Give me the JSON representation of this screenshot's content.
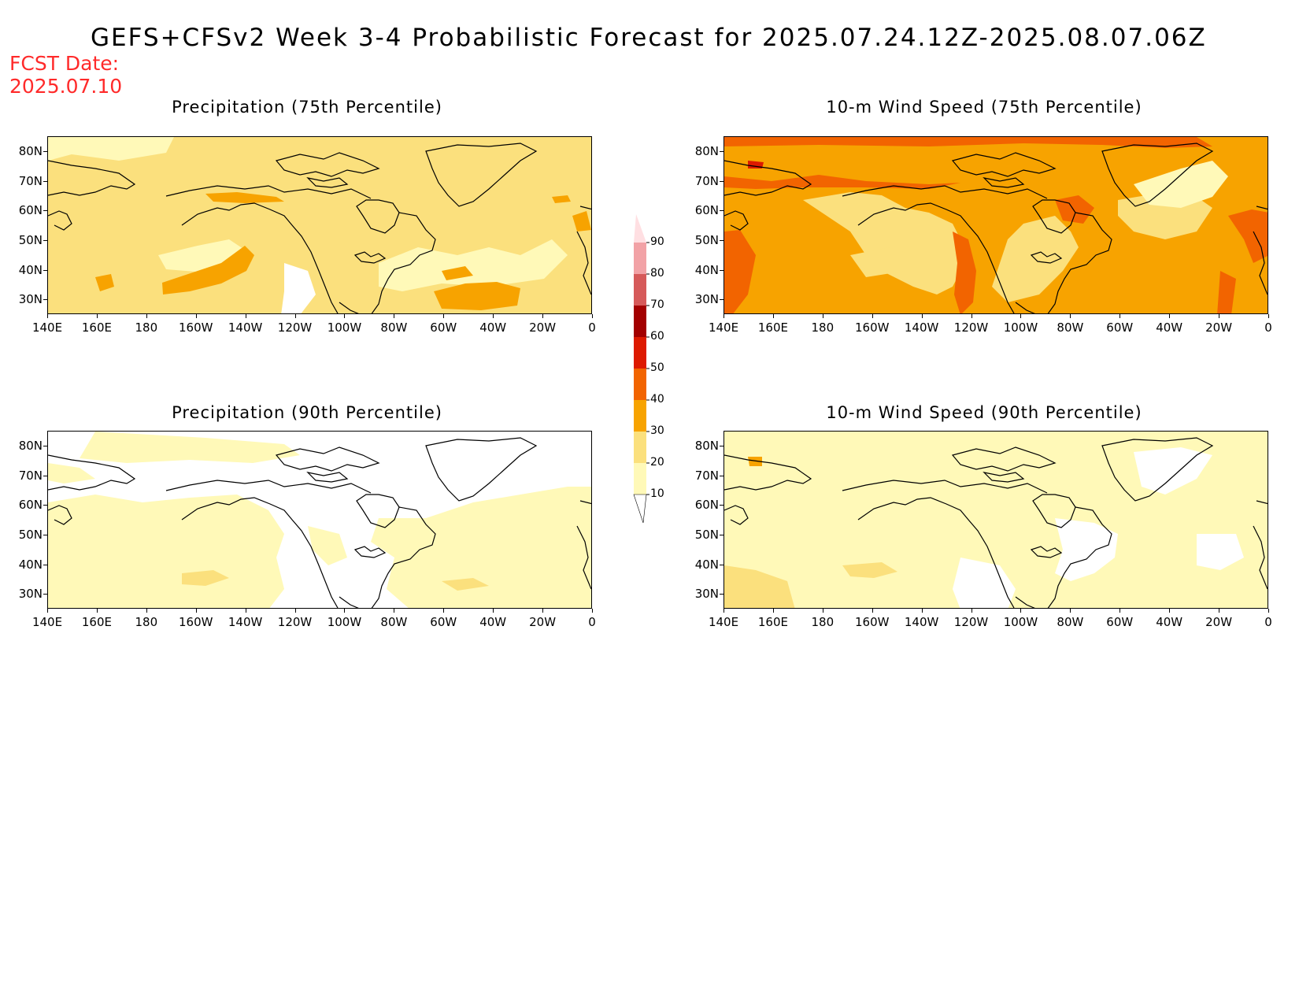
{
  "title": "GEFS+CFSv2 Week 3-4 Probabilistic Forecast for 2025.07.24.12Z-2025.08.07.06Z",
  "fcst_date": {
    "label": "FCST Date:",
    "value": "2025.07.10"
  },
  "panels": [
    {
      "id": "precip-75",
      "title": "Precipitation (75th Percentile)"
    },
    {
      "id": "wind-75",
      "title": "10-m Wind Speed (75th Percentile)"
    },
    {
      "id": "precip-90",
      "title": "Precipitation (90th Percentile)"
    },
    {
      "id": "wind-90",
      "title": "10-m Wind Speed (90th Percentile)"
    }
  ],
  "axes": {
    "lat_labels": [
      "80N",
      "70N",
      "60N",
      "50N",
      "40N",
      "30N"
    ],
    "lat_values": [
      80,
      70,
      60,
      50,
      40,
      30
    ],
    "lon_labels": [
      "140E",
      "160E",
      "180",
      "160W",
      "140W",
      "120W",
      "100W",
      "80W",
      "60W",
      "40W",
      "20W",
      "0"
    ],
    "lon_range": [
      "140E",
      "0"
    ],
    "lat_range": [
      25,
      85
    ]
  },
  "colorbar": {
    "levels": [
      "10",
      "20",
      "30",
      "40",
      "50",
      "60",
      "70",
      "80",
      "90"
    ],
    "colors": [
      "#fff9b8",
      "#fbe07d",
      "#f7a300",
      "#f26400",
      "#dd1a00",
      "#a30000",
      "#d65a5a",
      "#f2a2a6",
      "#ffdfe2"
    ]
  },
  "colors": {
    "title": "#000000",
    "fcst_date": "#ff2a2a",
    "coast": "#000000"
  }
}
